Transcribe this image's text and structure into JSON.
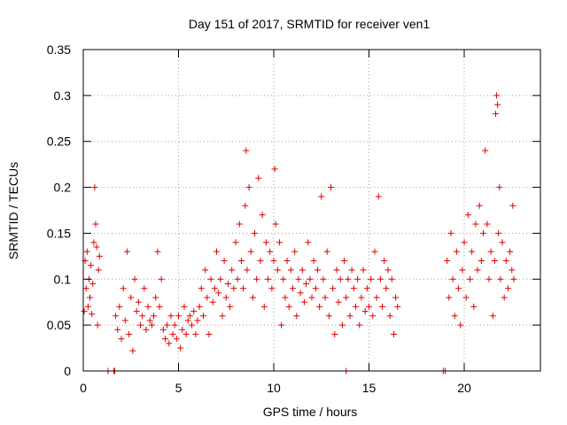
{
  "chart_data": {
    "type": "scatter",
    "title": "Day 151 of 2017, SRMTID for receiver ven1",
    "xlabel": "GPS time / hours",
    "ylabel": "SRMTID / TECUs",
    "xlim": [
      0,
      24
    ],
    "ylim": [
      0,
      0.35
    ],
    "x_ticks": [
      0,
      5,
      10,
      15,
      20
    ],
    "x_tick_labels": [
      "0",
      "5",
      "10",
      "15",
      "20"
    ],
    "y_ticks": [
      0,
      0.05,
      0.1,
      0.15,
      0.2,
      0.25,
      0.3,
      0.35
    ],
    "y_tick_labels": [
      "0",
      "0.05",
      "0.1",
      "0.15",
      "0.2",
      "0.25",
      "0.3",
      "0.35"
    ],
    "grid": true,
    "marker": "+",
    "color": "#e00000",
    "series": [
      {
        "name": "ven1",
        "points": [
          [
            0.05,
            0.065
          ],
          [
            0.1,
            0.12
          ],
          [
            0.15,
            0.09
          ],
          [
            0.2,
            0.13
          ],
          [
            0.25,
            0.07
          ],
          [
            0.3,
            0.1
          ],
          [
            0.35,
            0.08
          ],
          [
            0.4,
            0.115
          ],
          [
            0.45,
            0.062
          ],
          [
            0.5,
            0.095
          ],
          [
            0.55,
            0.14
          ],
          [
            0.6,
            0.2
          ],
          [
            0.65,
            0.16
          ],
          [
            0.7,
            0.135
          ],
          [
            0.75,
            0.05
          ],
          [
            0.8,
            0.11
          ],
          [
            0.85,
            0.125
          ],
          [
            1.3,
            0.0
          ],
          [
            1.6,
            0.0
          ],
          [
            1.65,
            0.0
          ],
          [
            1.7,
            0.06
          ],
          [
            1.8,
            0.045
          ],
          [
            1.9,
            0.07
          ],
          [
            2.0,
            0.035
          ],
          [
            2.1,
            0.09
          ],
          [
            2.2,
            0.055
          ],
          [
            2.3,
            0.13
          ],
          [
            2.4,
            0.04
          ],
          [
            2.5,
            0.08
          ],
          [
            2.6,
            0.022
          ],
          [
            2.7,
            0.1
          ],
          [
            2.8,
            0.065
          ],
          [
            2.9,
            0.075
          ],
          [
            3.0,
            0.05
          ],
          [
            3.1,
            0.06
          ],
          [
            3.2,
            0.09
          ],
          [
            3.3,
            0.045
          ],
          [
            3.4,
            0.07
          ],
          [
            3.5,
            0.055
          ],
          [
            3.6,
            0.05
          ],
          [
            3.7,
            0.06
          ],
          [
            3.8,
            0.08
          ],
          [
            3.9,
            0.13
          ],
          [
            4.0,
            0.07
          ],
          [
            4.1,
            0.1
          ],
          [
            4.2,
            0.045
          ],
          [
            4.3,
            0.035
          ],
          [
            4.4,
            0.05
          ],
          [
            4.5,
            0.03
          ],
          [
            4.6,
            0.06
          ],
          [
            4.7,
            0.04
          ],
          [
            4.8,
            0.05
          ],
          [
            4.9,
            0.035
          ],
          [
            5.0,
            0.06
          ],
          [
            5.1,
            0.025
          ],
          [
            5.2,
            0.045
          ],
          [
            5.3,
            0.07
          ],
          [
            5.4,
            0.04
          ],
          [
            5.5,
            0.055
          ],
          [
            5.6,
            0.06
          ],
          [
            5.7,
            0.05
          ],
          [
            5.8,
            0.065
          ],
          [
            5.9,
            0.04
          ],
          [
            6.0,
            0.055
          ],
          [
            6.1,
            0.07
          ],
          [
            6.2,
            0.09
          ],
          [
            6.3,
            0.06
          ],
          [
            6.4,
            0.11
          ],
          [
            6.5,
            0.08
          ],
          [
            6.6,
            0.04
          ],
          [
            6.7,
            0.1
          ],
          [
            6.8,
            0.075
          ],
          [
            6.9,
            0.09
          ],
          [
            7.0,
            0.13
          ],
          [
            7.1,
            0.085
          ],
          [
            7.2,
            0.1
          ],
          [
            7.3,
            0.06
          ],
          [
            7.4,
            0.12
          ],
          [
            7.5,
            0.08
          ],
          [
            7.6,
            0.095
          ],
          [
            7.7,
            0.07
          ],
          [
            7.8,
            0.11
          ],
          [
            7.9,
            0.09
          ],
          [
            8.0,
            0.14
          ],
          [
            8.1,
            0.1
          ],
          [
            8.2,
            0.16
          ],
          [
            8.3,
            0.12
          ],
          [
            8.4,
            0.09
          ],
          [
            8.5,
            0.18
          ],
          [
            8.55,
            0.24
          ],
          [
            8.6,
            0.11
          ],
          [
            8.7,
            0.2
          ],
          [
            8.8,
            0.13
          ],
          [
            8.9,
            0.08
          ],
          [
            9.0,
            0.15
          ],
          [
            9.1,
            0.1
          ],
          [
            9.2,
            0.21
          ],
          [
            9.3,
            0.12
          ],
          [
            9.4,
            0.17
          ],
          [
            9.5,
            0.07
          ],
          [
            9.6,
            0.14
          ],
          [
            9.7,
            0.1
          ],
          [
            9.8,
            0.13
          ],
          [
            9.9,
            0.09
          ],
          [
            10.0,
            0.12
          ],
          [
            10.05,
            0.22
          ],
          [
            10.1,
            0.16
          ],
          [
            10.2,
            0.11
          ],
          [
            10.3,
            0.14
          ],
          [
            10.4,
            0.05
          ],
          [
            10.5,
            0.1
          ],
          [
            10.6,
            0.08
          ],
          [
            10.7,
            0.12
          ],
          [
            10.8,
            0.07
          ],
          [
            10.9,
            0.11
          ],
          [
            11.0,
            0.09
          ],
          [
            11.1,
            0.13
          ],
          [
            11.2,
            0.06
          ],
          [
            11.3,
            0.1
          ],
          [
            11.4,
            0.085
          ],
          [
            11.5,
            0.11
          ],
          [
            11.6,
            0.075
          ],
          [
            11.7,
            0.095
          ],
          [
            11.8,
            0.14
          ],
          [
            11.9,
            0.1
          ],
          [
            12.0,
            0.08
          ],
          [
            12.1,
            0.12
          ],
          [
            12.2,
            0.09
          ],
          [
            12.3,
            0.11
          ],
          [
            12.4,
            0.07
          ],
          [
            12.5,
            0.19
          ],
          [
            12.6,
            0.1
          ],
          [
            12.7,
            0.08
          ],
          [
            12.8,
            0.13
          ],
          [
            12.9,
            0.06
          ],
          [
            13.0,
            0.2
          ],
          [
            13.1,
            0.09
          ],
          [
            13.2,
            0.04
          ],
          [
            13.3,
            0.11
          ],
          [
            13.4,
            0.075
          ],
          [
            13.5,
            0.1
          ],
          [
            13.6,
            0.05
          ],
          [
            13.7,
            0.12
          ],
          [
            13.8,
            0.08
          ],
          [
            13.9,
            0.1
          ],
          [
            14.0,
            0.06
          ],
          [
            14.1,
            0.11
          ],
          [
            14.2,
            0.09
          ],
          [
            14.3,
            0.07
          ],
          [
            14.4,
            0.1
          ],
          [
            14.5,
            0.05
          ],
          [
            14.6,
            0.08
          ],
          [
            14.7,
            0.11
          ],
          [
            14.8,
            0.065
          ],
          [
            14.9,
            0.09
          ],
          [
            15.0,
            0.07
          ],
          [
            15.1,
            0.1
          ],
          [
            15.2,
            0.06
          ],
          [
            15.3,
            0.13
          ],
          [
            15.4,
            0.08
          ],
          [
            15.5,
            0.19
          ],
          [
            15.6,
            0.1
          ],
          [
            15.7,
            0.07
          ],
          [
            15.8,
            0.12
          ],
          [
            15.9,
            0.09
          ],
          [
            16.0,
            0.11
          ],
          [
            16.1,
            0.06
          ],
          [
            16.2,
            0.1
          ],
          [
            16.3,
            0.04
          ],
          [
            16.4,
            0.08
          ],
          [
            16.5,
            0.07
          ],
          [
            13.8,
            0.0
          ],
          [
            18.9,
            0.0
          ],
          [
            19.0,
            0.0
          ],
          [
            19.1,
            0.12
          ],
          [
            19.2,
            0.08
          ],
          [
            19.3,
            0.15
          ],
          [
            19.4,
            0.1
          ],
          [
            19.5,
            0.06
          ],
          [
            19.6,
            0.13
          ],
          [
            19.7,
            0.09
          ],
          [
            19.8,
            0.05
          ],
          [
            19.9,
            0.11
          ],
          [
            20.0,
            0.14
          ],
          [
            20.1,
            0.08
          ],
          [
            20.2,
            0.17
          ],
          [
            20.3,
            0.1
          ],
          [
            20.4,
            0.13
          ],
          [
            20.5,
            0.07
          ],
          [
            20.6,
            0.16
          ],
          [
            20.7,
            0.11
          ],
          [
            20.8,
            0.18
          ],
          [
            20.9,
            0.12
          ],
          [
            21.0,
            0.15
          ],
          [
            21.1,
            0.24
          ],
          [
            21.2,
            0.16
          ],
          [
            21.3,
            0.1
          ],
          [
            21.4,
            0.13
          ],
          [
            21.5,
            0.06
          ],
          [
            21.6,
            0.12
          ],
          [
            21.65,
            0.28
          ],
          [
            21.7,
            0.3
          ],
          [
            21.75,
            0.29
          ],
          [
            21.8,
            0.15
          ],
          [
            21.85,
            0.2
          ],
          [
            21.9,
            0.1
          ],
          [
            22.0,
            0.14
          ],
          [
            22.1,
            0.08
          ],
          [
            22.2,
            0.12
          ],
          [
            22.3,
            0.09
          ],
          [
            22.4,
            0.13
          ],
          [
            22.5,
            0.11
          ],
          [
            22.55,
            0.18
          ],
          [
            22.6,
            0.1
          ]
        ]
      }
    ]
  }
}
